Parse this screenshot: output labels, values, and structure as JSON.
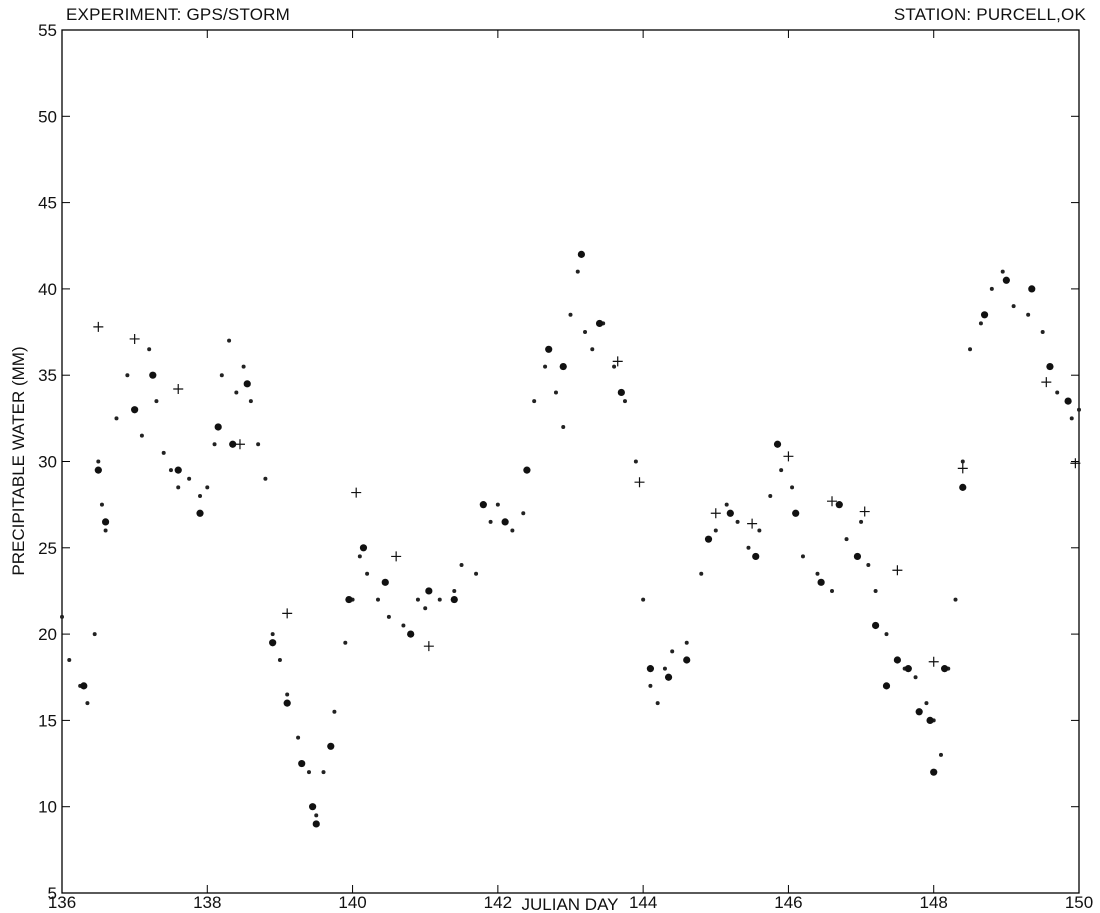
{
  "header": {
    "left": "EXPERIMENT: GPS/STORM",
    "right": "STATION: PURCELL,OK"
  },
  "chart_data": {
    "type": "scatter",
    "title": "",
    "xlabel": "JULIAN DAY",
    "ylabel": "PRECIPITABLE WATER  (MM)",
    "xlim": [
      136,
      150
    ],
    "ylim": [
      5,
      55
    ],
    "xticks": [
      136,
      138,
      140,
      142,
      144,
      146,
      148,
      150
    ],
    "yticks": [
      5,
      10,
      15,
      20,
      25,
      30,
      35,
      40,
      45,
      50,
      55
    ],
    "grid": false,
    "legend": "none",
    "series": [
      {
        "marker": "small-dot",
        "color": "#222222",
        "x": [
          136.0,
          136.1,
          136.25,
          136.35,
          136.45,
          136.5,
          136.55,
          136.6,
          136.75,
          136.9,
          137.0,
          137.1,
          137.2,
          137.3,
          137.4,
          137.5,
          137.6,
          137.75,
          137.9,
          138.0,
          138.1,
          138.2,
          138.3,
          138.4,
          138.5,
          138.6,
          138.7,
          138.8,
          138.9,
          139.0,
          139.1,
          139.25,
          139.4,
          139.5,
          139.6,
          139.75,
          139.9,
          140.0,
          140.1,
          140.2,
          140.35,
          140.5,
          140.7,
          140.9,
          141.0,
          141.2,
          141.4,
          141.5,
          141.7,
          141.9,
          142.0,
          142.2,
          142.35,
          142.5,
          142.65,
          142.8,
          142.9,
          143.0,
          143.1,
          143.2,
          143.3,
          143.45,
          143.6,
          143.75,
          143.9,
          144.0,
          144.1,
          144.2,
          144.3,
          144.4,
          144.6,
          144.8,
          145.0,
          145.15,
          145.3,
          145.45,
          145.6,
          145.75,
          145.9,
          146.05,
          146.2,
          146.4,
          146.6,
          146.8,
          147.0,
          147.1,
          147.2,
          147.35,
          147.5,
          147.6,
          147.75,
          147.9,
          148.0,
          148.1,
          148.2,
          148.3,
          148.4,
          148.5,
          148.65,
          148.8,
          148.95,
          149.1,
          149.3,
          149.5,
          149.7,
          149.9,
          150.0
        ],
        "y": [
          21.0,
          18.5,
          17.0,
          16.0,
          20.0,
          30.0,
          27.5,
          26.0,
          32.5,
          35.0,
          33.0,
          31.5,
          36.5,
          33.5,
          30.5,
          29.5,
          28.5,
          29.0,
          28.0,
          28.5,
          31.0,
          35.0,
          37.0,
          34.0,
          35.5,
          33.5,
          31.0,
          29.0,
          20.0,
          18.5,
          16.5,
          14.0,
          12.0,
          9.5,
          12.0,
          15.5,
          19.5,
          22.0,
          24.5,
          23.5,
          22.0,
          21.0,
          20.5,
          22.0,
          21.5,
          22.0,
          22.5,
          24.0,
          23.5,
          26.5,
          27.5,
          26.0,
          27.0,
          33.5,
          35.5,
          34.0,
          32.0,
          38.5,
          41.0,
          37.5,
          36.5,
          38.0,
          35.5,
          33.5,
          30.0,
          22.0,
          17.0,
          16.0,
          18.0,
          19.0,
          19.5,
          23.5,
          26.0,
          27.5,
          26.5,
          25.0,
          26.0,
          28.0,
          29.5,
          28.5,
          24.5,
          23.5,
          22.5,
          25.5,
          26.5,
          24.0,
          22.5,
          20.0,
          18.5,
          18.0,
          17.5,
          16.0,
          15.0,
          13.0,
          18.0,
          22.0,
          30.0,
          36.5,
          38.0,
          40.0,
          41.0,
          39.0,
          38.5,
          37.5,
          34.0,
          32.5,
          33.0
        ]
      },
      {
        "marker": "large-dot",
        "color": "#111111",
        "x": [
          136.3,
          136.5,
          136.6,
          137.0,
          137.25,
          137.6,
          137.9,
          138.15,
          138.35,
          138.55,
          138.9,
          139.1,
          139.3,
          139.45,
          139.5,
          139.7,
          139.95,
          140.15,
          140.45,
          140.8,
          141.05,
          141.4,
          141.8,
          142.1,
          142.4,
          142.7,
          142.9,
          143.15,
          143.4,
          143.7,
          144.1,
          144.35,
          144.6,
          144.9,
          145.2,
          145.55,
          145.85,
          146.1,
          146.45,
          146.7,
          146.95,
          147.2,
          147.35,
          147.5,
          147.65,
          147.8,
          147.95,
          148.0,
          148.15,
          148.4,
          148.7,
          149.0,
          149.35,
          149.6,
          149.85
        ],
        "y": [
          17.0,
          29.5,
          26.5,
          33.0,
          35.0,
          29.5,
          27.0,
          32.0,
          31.0,
          34.5,
          19.5,
          16.0,
          12.5,
          10.0,
          9.0,
          13.5,
          22.0,
          25.0,
          23.0,
          20.0,
          22.5,
          22.0,
          27.5,
          26.5,
          29.5,
          36.5,
          35.5,
          42.0,
          38.0,
          34.0,
          18.0,
          17.5,
          18.5,
          25.5,
          27.0,
          24.5,
          31.0,
          27.0,
          23.0,
          27.5,
          24.5,
          20.5,
          17.0,
          18.5,
          18.0,
          15.5,
          15.0,
          12.0,
          18.0,
          28.5,
          38.5,
          40.5,
          40.0,
          35.5,
          33.5
        ]
      },
      {
        "marker": "plus",
        "color": "#111111",
        "x": [
          136.5,
          137.0,
          137.6,
          138.45,
          139.1,
          140.05,
          140.6,
          141.05,
          143.65,
          143.95,
          145.0,
          145.5,
          146.0,
          146.6,
          147.05,
          147.5,
          148.0,
          148.4,
          149.55,
          149.95
        ],
        "y": [
          37.8,
          37.1,
          34.2,
          31.0,
          21.2,
          28.2,
          24.5,
          19.3,
          35.8,
          28.8,
          27.0,
          26.4,
          30.3,
          27.7,
          27.1,
          23.7,
          18.4,
          29.6,
          34.6,
          29.9
        ]
      }
    ]
  }
}
